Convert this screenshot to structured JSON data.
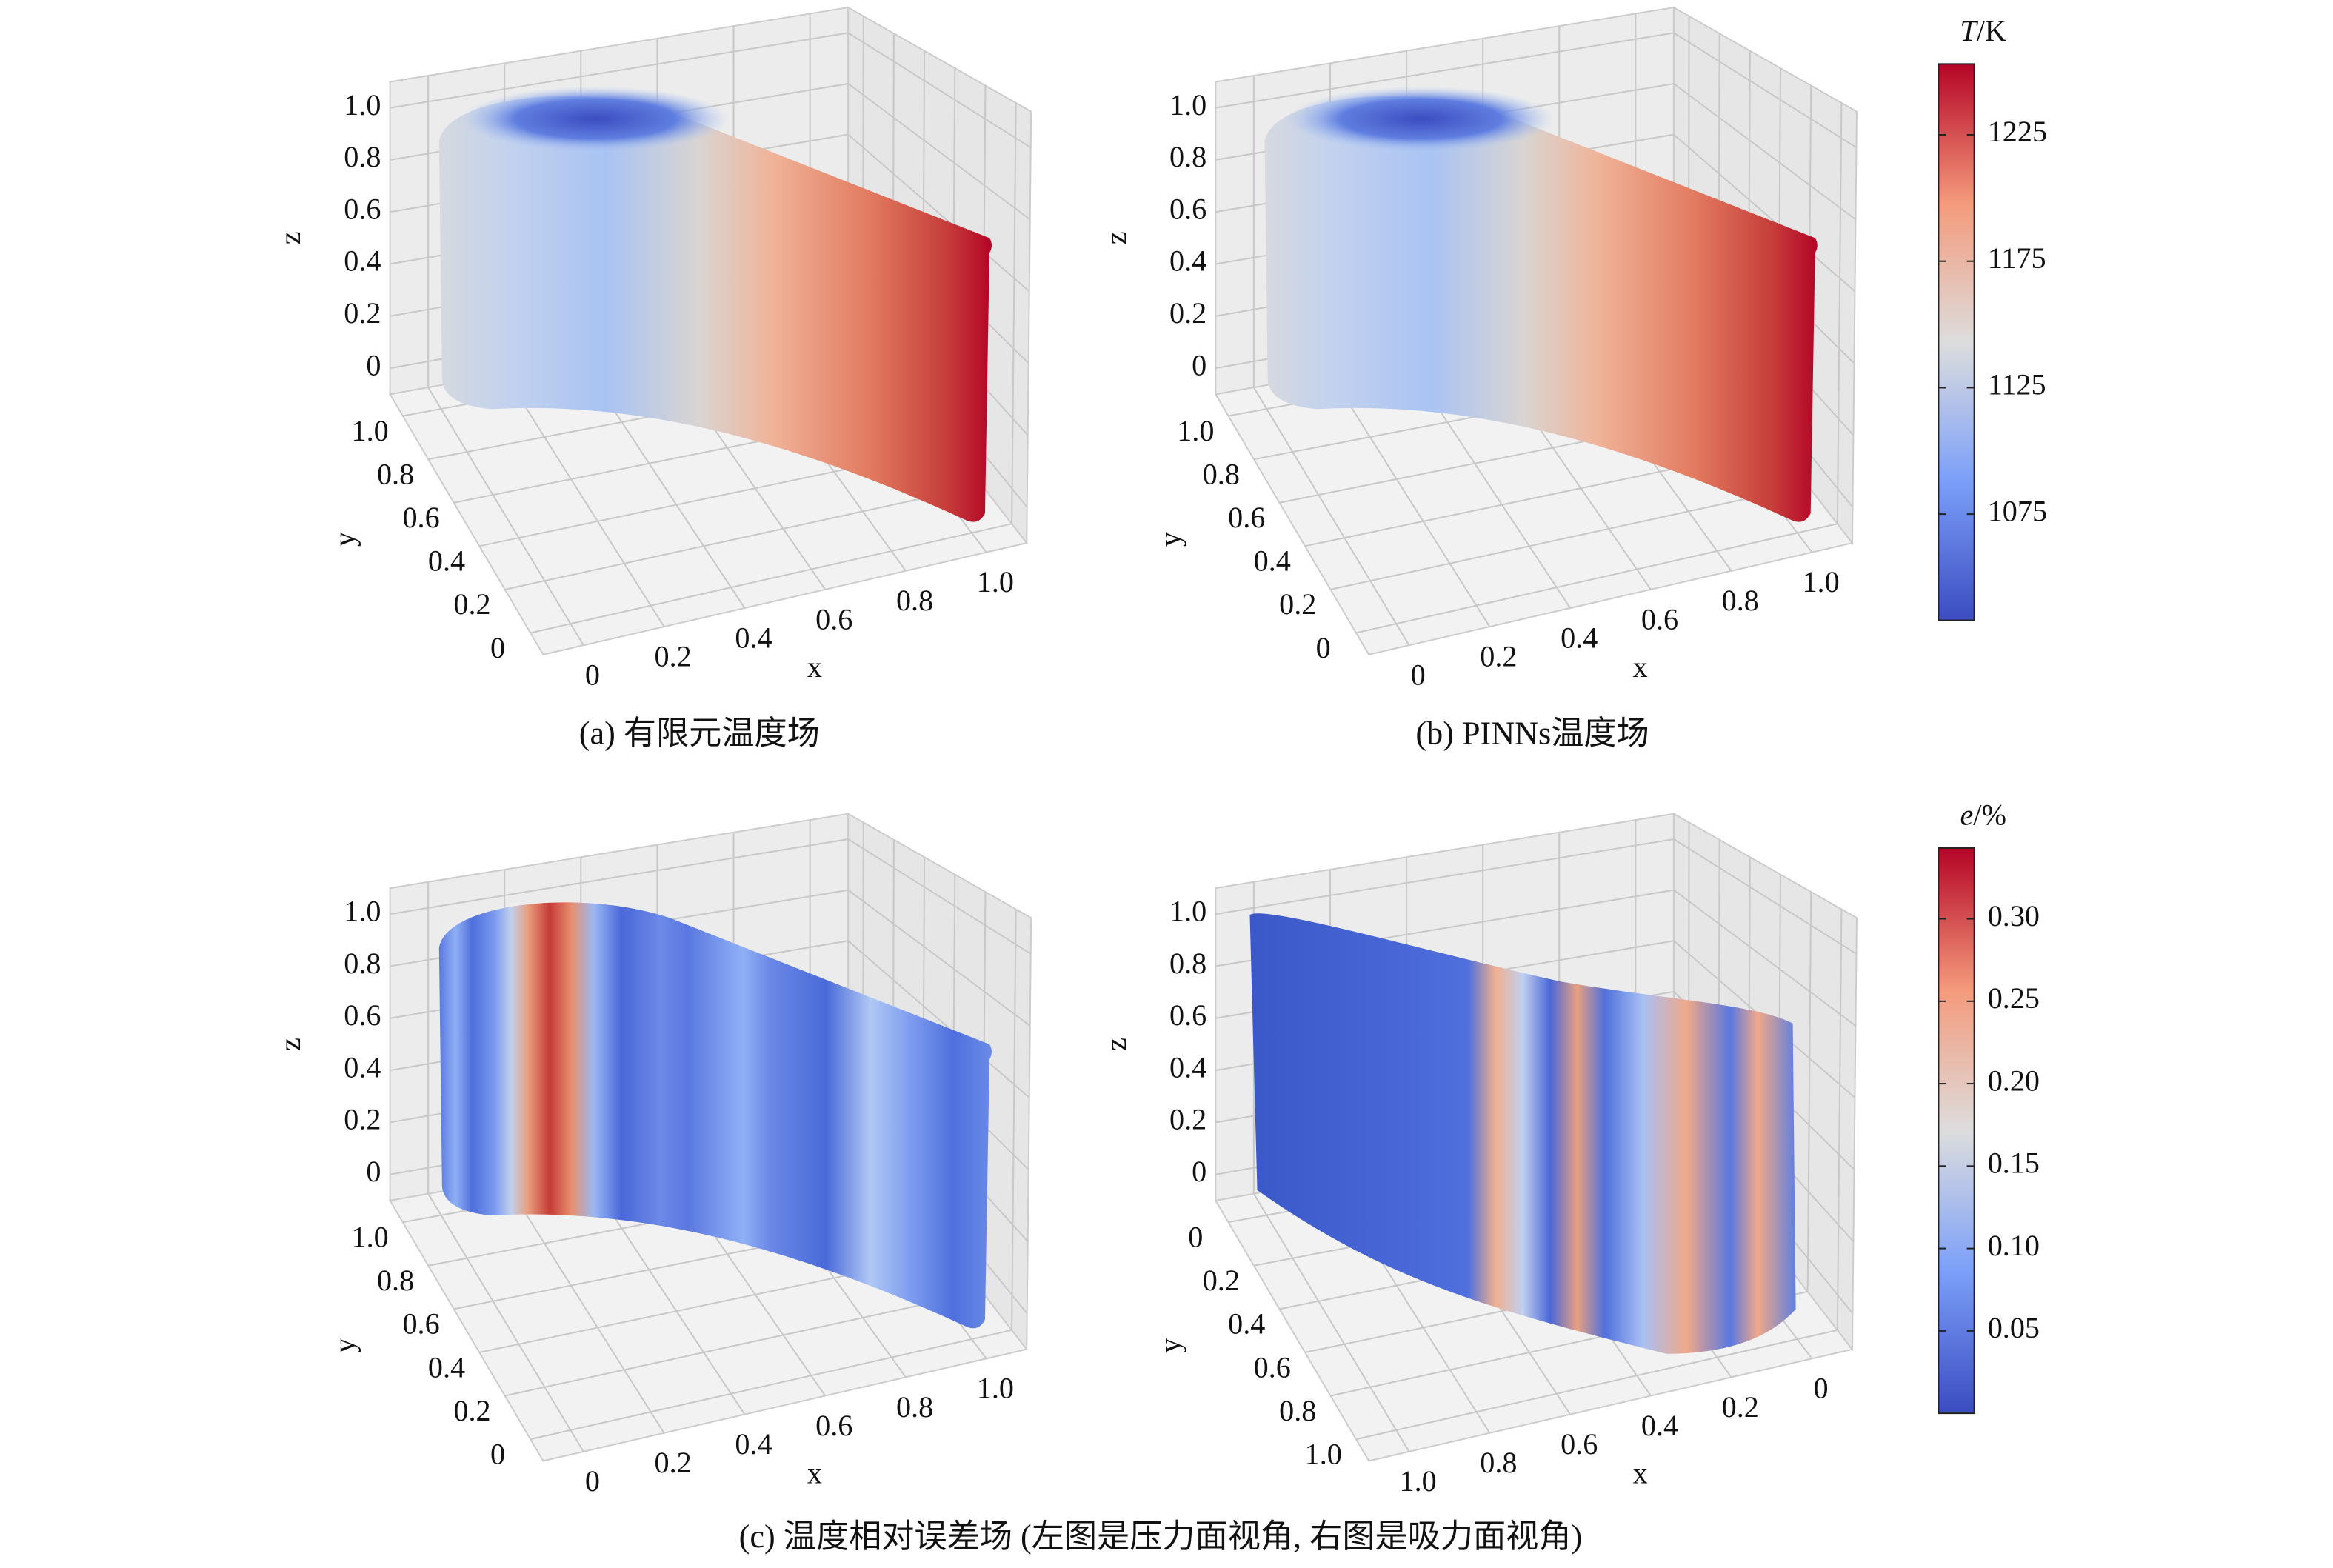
{
  "chart_data": [
    {
      "type": "scatter3d",
      "xlabel": "x",
      "ylabel": "y",
      "zlabel": "z",
      "xlim": [
        -0.1,
        1.1
      ],
      "ylim": [
        -0.1,
        1.1
      ],
      "zlim": [
        -0.1,
        1.1
      ],
      "xticks": [
        0,
        0.2,
        0.4,
        0.6,
        0.8,
        {
          "value": 1,
          "label": "1.0"
        }
      ],
      "yticks": [
        0,
        0.2,
        0.4,
        0.6,
        0.8,
        {
          "value": 1,
          "label": "1.0"
        }
      ],
      "zticks": [
        0,
        0.2,
        0.4,
        0.6,
        0.8,
        {
          "value": 1,
          "label": "1.0"
        }
      ],
      "caption": "(a) 有限元温度场"
    },
    {
      "type": "scatter3d",
      "xlabel": "x",
      "ylabel": "y",
      "zlabel": "z",
      "xlim": [
        -0.1,
        1.1
      ],
      "ylim": [
        -0.1,
        1.1
      ],
      "zlim": [
        -0.1,
        1.1
      ],
      "xticks": [
        0,
        0.2,
        0.4,
        0.6,
        0.8,
        {
          "value": 1,
          "label": "1.0"
        }
      ],
      "yticks": [
        0,
        0.2,
        0.4,
        0.6,
        0.8,
        {
          "value": 1,
          "label": "1.0"
        }
      ],
      "zticks": [
        0,
        0.2,
        0.4,
        0.6,
        0.8,
        {
          "value": 1,
          "label": "1.0"
        }
      ],
      "caption": "(b) PINNs温度场"
    },
    {
      "type": "scatter3d",
      "xlabel": "x",
      "ylabel": "y",
      "zlabel": "z",
      "xlim": [
        -0.1,
        1.1
      ],
      "ylim": [
        -0.1,
        1.1
      ],
      "zlim": [
        -0.1,
        1.1
      ],
      "xticks": [
        0,
        0.2,
        0.4,
        0.6,
        0.8,
        {
          "value": 1,
          "label": "1.0"
        }
      ],
      "yticks": [
        0,
        0.2,
        0.4,
        0.6,
        0.8,
        {
          "value": 1,
          "label": "1.0"
        }
      ],
      "zticks": [
        0,
        0.2,
        0.4,
        0.6,
        0.8,
        {
          "value": 1,
          "label": "1.0"
        }
      ],
      "caption": "(c) 温度相对误差场 (左图是压力面视角, 右图是吸力面视角)"
    },
    {
      "type": "scatter3d",
      "xlabel": "x",
      "ylabel": "y",
      "zlabel": "z",
      "xlim": [
        -0.1,
        1.1
      ],
      "ylim": [
        -0.1,
        1.1
      ],
      "zlim": [
        -0.1,
        1.1
      ],
      "xinvert": true,
      "yinvert": true,
      "xticks": [
        0,
        0.2,
        0.4,
        0.6,
        0.8,
        {
          "value": 1,
          "label": "1.0"
        }
      ],
      "yticks": [
        0,
        0.2,
        0.4,
        0.6,
        0.8,
        {
          "value": 1,
          "label": "1.0"
        }
      ],
      "zticks": [
        0,
        0.2,
        0.4,
        0.6,
        0.8,
        {
          "value": 1,
          "label": "1.0"
        }
      ]
    },
    {
      "type": "colorbar",
      "label": "T",
      "unit": "/K",
      "lim": [
        1033,
        1253
      ],
      "ticks": [
        1075,
        1125,
        1175,
        1225
      ]
    },
    {
      "type": "colorbar",
      "label": "e",
      "unit": "/%",
      "lim": [
        0,
        0.343
      ],
      "ticks": [
        0.05,
        {
          "value": 0.1,
          "label": "0.10"
        },
        0.15,
        {
          "value": 0.2,
          "label": "0.20"
        },
        0.25,
        {
          "value": 0.3,
          "label": "0.30"
        }
      ]
    }
  ]
}
